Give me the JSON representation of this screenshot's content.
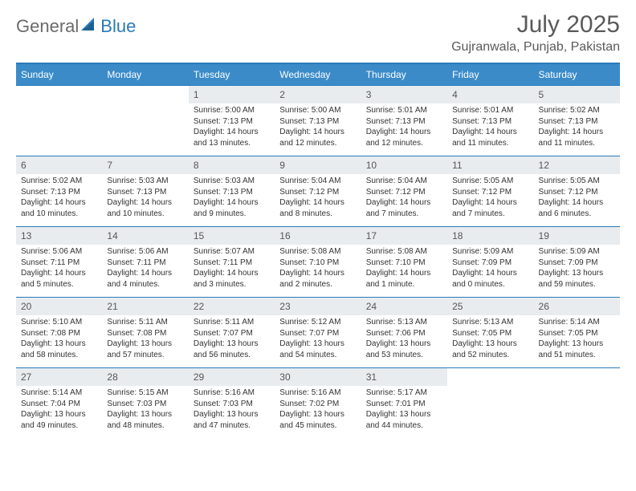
{
  "logo": {
    "text1": "General",
    "text2": "Blue"
  },
  "title": "July 2025",
  "location": "Gujranwala, Punjab, Pakistan",
  "colors": {
    "accent": "#3b8bc9",
    "rule": "#2a7ab8",
    "daybg": "#e9ecef"
  },
  "day_headers": [
    "Sunday",
    "Monday",
    "Tuesday",
    "Wednesday",
    "Thursday",
    "Friday",
    "Saturday"
  ],
  "weeks": [
    [
      null,
      null,
      {
        "n": "1",
        "sunrise": "5:00 AM",
        "sunset": "7:13 PM",
        "daylight": "14 hours and 13 minutes."
      },
      {
        "n": "2",
        "sunrise": "5:00 AM",
        "sunset": "7:13 PM",
        "daylight": "14 hours and 12 minutes."
      },
      {
        "n": "3",
        "sunrise": "5:01 AM",
        "sunset": "7:13 PM",
        "daylight": "14 hours and 12 minutes."
      },
      {
        "n": "4",
        "sunrise": "5:01 AM",
        "sunset": "7:13 PM",
        "daylight": "14 hours and 11 minutes."
      },
      {
        "n": "5",
        "sunrise": "5:02 AM",
        "sunset": "7:13 PM",
        "daylight": "14 hours and 11 minutes."
      }
    ],
    [
      {
        "n": "6",
        "sunrise": "5:02 AM",
        "sunset": "7:13 PM",
        "daylight": "14 hours and 10 minutes."
      },
      {
        "n": "7",
        "sunrise": "5:03 AM",
        "sunset": "7:13 PM",
        "daylight": "14 hours and 10 minutes."
      },
      {
        "n": "8",
        "sunrise": "5:03 AM",
        "sunset": "7:13 PM",
        "daylight": "14 hours and 9 minutes."
      },
      {
        "n": "9",
        "sunrise": "5:04 AM",
        "sunset": "7:12 PM",
        "daylight": "14 hours and 8 minutes."
      },
      {
        "n": "10",
        "sunrise": "5:04 AM",
        "sunset": "7:12 PM",
        "daylight": "14 hours and 7 minutes."
      },
      {
        "n": "11",
        "sunrise": "5:05 AM",
        "sunset": "7:12 PM",
        "daylight": "14 hours and 7 minutes."
      },
      {
        "n": "12",
        "sunrise": "5:05 AM",
        "sunset": "7:12 PM",
        "daylight": "14 hours and 6 minutes."
      }
    ],
    [
      {
        "n": "13",
        "sunrise": "5:06 AM",
        "sunset": "7:11 PM",
        "daylight": "14 hours and 5 minutes."
      },
      {
        "n": "14",
        "sunrise": "5:06 AM",
        "sunset": "7:11 PM",
        "daylight": "14 hours and 4 minutes."
      },
      {
        "n": "15",
        "sunrise": "5:07 AM",
        "sunset": "7:11 PM",
        "daylight": "14 hours and 3 minutes."
      },
      {
        "n": "16",
        "sunrise": "5:08 AM",
        "sunset": "7:10 PM",
        "daylight": "14 hours and 2 minutes."
      },
      {
        "n": "17",
        "sunrise": "5:08 AM",
        "sunset": "7:10 PM",
        "daylight": "14 hours and 1 minute."
      },
      {
        "n": "18",
        "sunrise": "5:09 AM",
        "sunset": "7:09 PM",
        "daylight": "14 hours and 0 minutes."
      },
      {
        "n": "19",
        "sunrise": "5:09 AM",
        "sunset": "7:09 PM",
        "daylight": "13 hours and 59 minutes."
      }
    ],
    [
      {
        "n": "20",
        "sunrise": "5:10 AM",
        "sunset": "7:08 PM",
        "daylight": "13 hours and 58 minutes."
      },
      {
        "n": "21",
        "sunrise": "5:11 AM",
        "sunset": "7:08 PM",
        "daylight": "13 hours and 57 minutes."
      },
      {
        "n": "22",
        "sunrise": "5:11 AM",
        "sunset": "7:07 PM",
        "daylight": "13 hours and 56 minutes."
      },
      {
        "n": "23",
        "sunrise": "5:12 AM",
        "sunset": "7:07 PM",
        "daylight": "13 hours and 54 minutes."
      },
      {
        "n": "24",
        "sunrise": "5:13 AM",
        "sunset": "7:06 PM",
        "daylight": "13 hours and 53 minutes."
      },
      {
        "n": "25",
        "sunrise": "5:13 AM",
        "sunset": "7:05 PM",
        "daylight": "13 hours and 52 minutes."
      },
      {
        "n": "26",
        "sunrise": "5:14 AM",
        "sunset": "7:05 PM",
        "daylight": "13 hours and 51 minutes."
      }
    ],
    [
      {
        "n": "27",
        "sunrise": "5:14 AM",
        "sunset": "7:04 PM",
        "daylight": "13 hours and 49 minutes."
      },
      {
        "n": "28",
        "sunrise": "5:15 AM",
        "sunset": "7:03 PM",
        "daylight": "13 hours and 48 minutes."
      },
      {
        "n": "29",
        "sunrise": "5:16 AM",
        "sunset": "7:03 PM",
        "daylight": "13 hours and 47 minutes."
      },
      {
        "n": "30",
        "sunrise": "5:16 AM",
        "sunset": "7:02 PM",
        "daylight": "13 hours and 45 minutes."
      },
      {
        "n": "31",
        "sunrise": "5:17 AM",
        "sunset": "7:01 PM",
        "daylight": "13 hours and 44 minutes."
      },
      null,
      null
    ]
  ],
  "labels": {
    "sunrise": "Sunrise:",
    "sunset": "Sunset:",
    "daylight": "Daylight:"
  }
}
